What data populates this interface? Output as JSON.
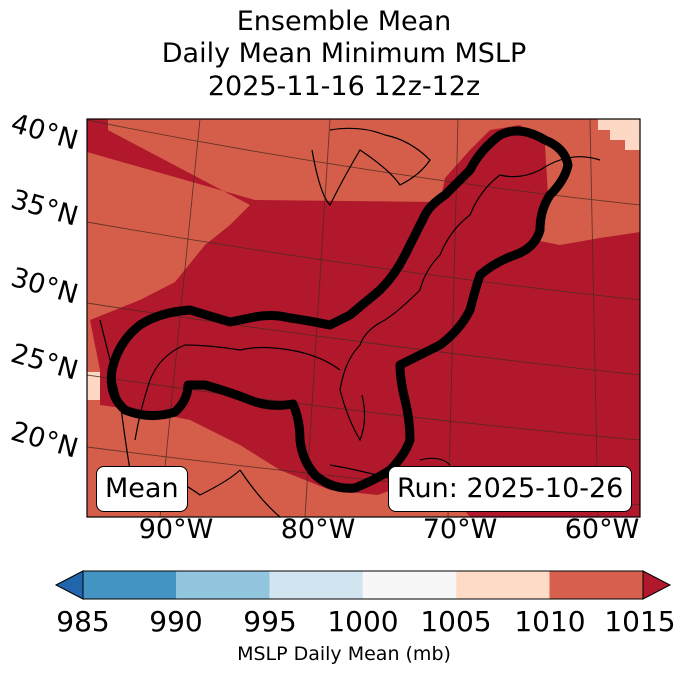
{
  "title": {
    "line1": "Ensemble Mean",
    "line2": "Daily Mean Minimum MSLP",
    "line3": "2025-11-16 12z-12z"
  },
  "map": {
    "lat_labels": [
      "40°N",
      "35°N",
      "30°N",
      "25°N",
      "20°N"
    ],
    "lon_labels": [
      "90°W",
      "80°W",
      "70°W",
      "60°W"
    ],
    "mean_box": "Mean",
    "run_box": "Run: 2025-10-26",
    "fill_colors": {
      "mslp_1005_1010": "#fdd8c4",
      "mslp_1010_1015": "#d55e4a",
      "mslp_above_1015": "#b1182c"
    }
  },
  "colorbar": {
    "ticks": [
      "985",
      "990",
      "995",
      "1000",
      "1005",
      "1010",
      "1015"
    ],
    "label": "MSLP Daily Mean (mb)",
    "colors": [
      "#2166ac",
      "#4393c3",
      "#92c5de",
      "#d1e5f0",
      "#f7f7f7",
      "#fddbc7",
      "#d6604d",
      "#b2182b"
    ]
  }
}
